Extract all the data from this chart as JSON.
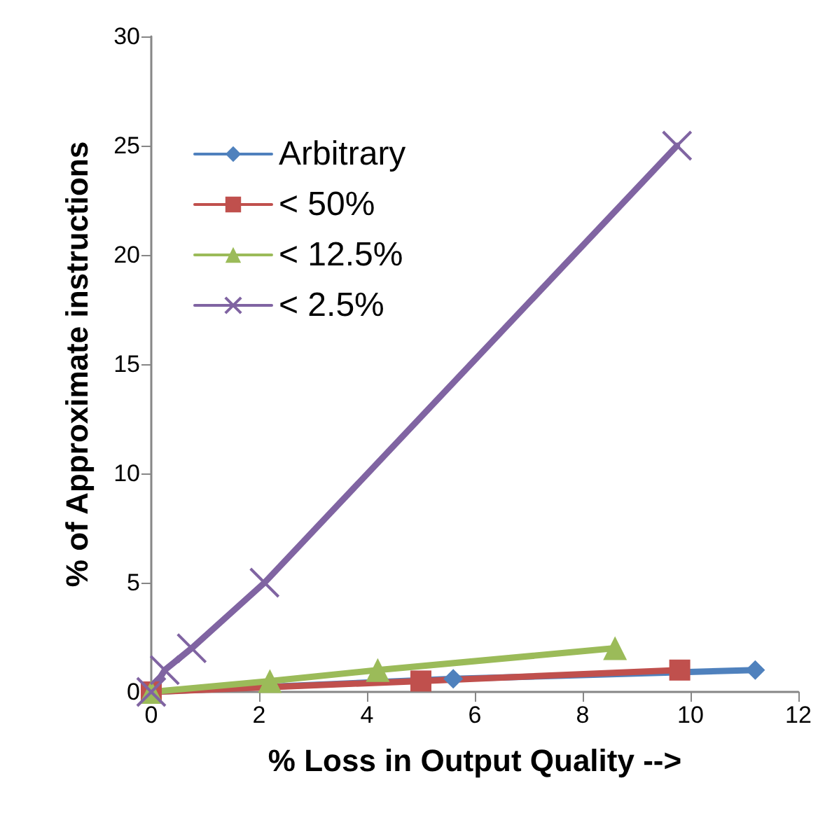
{
  "chart_data": {
    "type": "line",
    "xlabel": "% Loss in Output Quality -->",
    "ylabel": "% of Approximate instructions",
    "xlim": [
      0,
      12
    ],
    "xticks": [
      0,
      2,
      4,
      6,
      8,
      10,
      12
    ],
    "ylim": [
      0,
      30
    ],
    "yticks": [
      0,
      5,
      10,
      15,
      20,
      25,
      30
    ],
    "grid": false,
    "legend": "top left",
    "series": [
      {
        "name": "Arbitrary",
        "color": "#4f81bd",
        "marker": "diamond",
        "x": [
          0,
          5.6,
          11.2
        ],
        "values": [
          0,
          0.6,
          1
        ]
      },
      {
        "name": "< 50%",
        "color": "#c0504d",
        "marker": "square",
        "x": [
          0,
          5.0,
          9.8
        ],
        "values": [
          0,
          0.5,
          1
        ]
      },
      {
        "name": "< 12.5%",
        "color": "#9bbb59",
        "marker": "triangle",
        "x": [
          0,
          2.2,
          4.2,
          8.6
        ],
        "values": [
          0,
          0.5,
          1,
          2
        ]
      },
      {
        "name": "< 2.5%",
        "color": "#8064a2",
        "marker": "cross",
        "x": [
          0,
          0.25,
          0.75,
          2.1,
          9.75
        ],
        "values": [
          0,
          1,
          2,
          5,
          25
        ]
      }
    ]
  }
}
